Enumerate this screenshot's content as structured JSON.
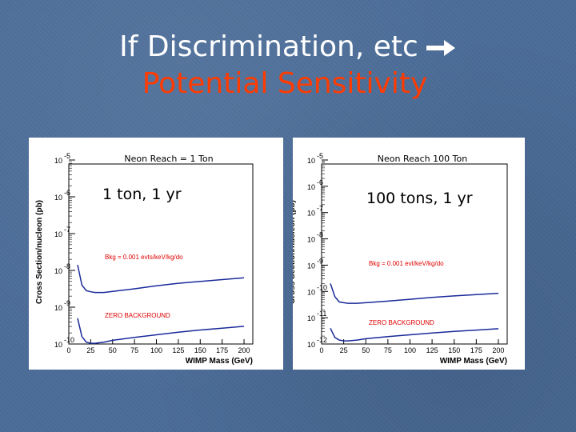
{
  "slide": {
    "title_line1": "If Discrimination, etc",
    "title_line2": "Potential Sensitivity",
    "title_color": "#ffffff",
    "subtitle_color": "#ff3b00",
    "arrow_icon": "arrow-right-icon"
  },
  "chart_data": [
    {
      "type": "line",
      "title": "Neon Reach = 1 Ton",
      "overlay_text": "1 ton, 1 yr",
      "xlabel": "WIMP Mass (GeV)",
      "ylabel": "Cross Section/nucleon (pb)",
      "xlim": [
        0,
        210
      ],
      "ylim_exp": [
        -10,
        -5
      ],
      "x_ticks": [
        0,
        25,
        50,
        75,
        100,
        125,
        150,
        175,
        200
      ],
      "y_tick_exps": [
        -10,
        -9,
        -8,
        -7,
        -6,
        -5
      ],
      "y_tick_base": "10",
      "series": [
        {
          "name": "Bkg = 0.001 evts/keV/kg/do",
          "x": [
            10,
            15,
            20,
            25,
            30,
            40,
            50,
            75,
            100,
            125,
            150,
            175,
            200
          ],
          "log10y": [
            -7.85,
            -8.4,
            -8.55,
            -8.58,
            -8.6,
            -8.6,
            -8.57,
            -8.5,
            -8.42,
            -8.35,
            -8.3,
            -8.25,
            -8.2
          ]
        },
        {
          "name": "ZERO BACKGROUND",
          "x": [
            10,
            15,
            20,
            25,
            30,
            40,
            50,
            75,
            100,
            125,
            150,
            175,
            200
          ],
          "log10y": [
            -9.3,
            -9.8,
            -9.95,
            -9.98,
            -9.98,
            -9.95,
            -9.9,
            -9.82,
            -9.75,
            -9.68,
            -9.62,
            -9.57,
            -9.52
          ]
        }
      ],
      "annotations": [
        "Bkg = 0.001 evts/keV/kg/do",
        "ZERO BACKGROUND"
      ]
    },
    {
      "type": "line",
      "title": "Neon Reach 100 Ton",
      "overlay_text": "100 tons, 1 yr",
      "xlabel": "WIMP Mass (GeV)",
      "ylabel": "Cross Section/nucleon (pb)",
      "xlim": [
        0,
        210
      ],
      "ylim_exp": [
        -12,
        -5
      ],
      "x_ticks": [
        0,
        25,
        50,
        75,
        100,
        125,
        150,
        175,
        200
      ],
      "y_tick_exps": [
        -12,
        -11,
        -10,
        -9,
        -8,
        -7,
        -6,
        -5
      ],
      "y_tick_base": "10",
      "series": [
        {
          "name": "Bkg = 0.001 evt/keV/kg/do",
          "x": [
            10,
            15,
            20,
            25,
            30,
            40,
            50,
            75,
            100,
            125,
            150,
            175,
            200
          ],
          "log10y": [
            -9.7,
            -10.2,
            -10.4,
            -10.43,
            -10.45,
            -10.45,
            -10.43,
            -10.37,
            -10.3,
            -10.23,
            -10.17,
            -10.12,
            -10.07
          ]
        },
        {
          "name": "ZERO BACKGROUND",
          "x": [
            10,
            15,
            20,
            25,
            30,
            40,
            50,
            75,
            100,
            125,
            150,
            175,
            200
          ],
          "log10y": [
            -11.4,
            -11.75,
            -11.85,
            -11.88,
            -11.88,
            -11.85,
            -11.8,
            -11.72,
            -11.65,
            -11.58,
            -11.52,
            -11.47,
            -11.42
          ]
        }
      ],
      "annotations": [
        "Bkg = 0.001 evt/keV/kg/do",
        "ZERO BACKGROUND"
      ]
    }
  ]
}
